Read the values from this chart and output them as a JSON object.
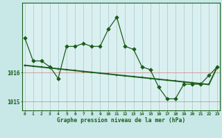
{
  "title": "Graphe pression niveau de la mer (hPa)",
  "fig_background": "#c8e8e8",
  "plot_background": "#daf0f0",
  "line_color": "#1a5c1a",
  "grid_color": "#b0cece",
  "hours": [
    0,
    1,
    2,
    3,
    4,
    5,
    6,
    7,
    8,
    9,
    10,
    11,
    12,
    13,
    14,
    15,
    16,
    17,
    18,
    19,
    20,
    21,
    22,
    23
  ],
  "pressure": [
    1017.2,
    1016.4,
    1016.4,
    1016.2,
    1015.8,
    1016.9,
    1016.9,
    1017.0,
    1016.9,
    1016.9,
    1017.5,
    1017.9,
    1016.9,
    1016.8,
    1016.2,
    1016.1,
    1015.5,
    1015.1,
    1015.1,
    1015.6,
    1015.6,
    1015.6,
    1015.9,
    1016.2
  ],
  "trend": [
    1016.25,
    1016.22,
    1016.19,
    1016.16,
    1016.13,
    1016.1,
    1016.07,
    1016.04,
    1016.01,
    1015.98,
    1015.95,
    1015.92,
    1015.89,
    1015.86,
    1015.83,
    1015.8,
    1015.77,
    1015.74,
    1015.71,
    1015.68,
    1015.65,
    1015.62,
    1015.59,
    1016.2
  ],
  "ylim": [
    1014.7,
    1018.4
  ],
  "yticks": [
    1015,
    1016
  ],
  "xlim": [
    -0.3,
    23.3
  ]
}
